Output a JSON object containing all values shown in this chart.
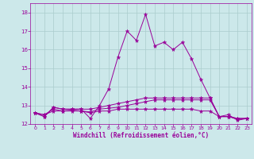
{
  "title": "",
  "xlabel": "Windchill (Refroidissement éolien,°C)",
  "ylabel": "",
  "background_color": "#cce8ea",
  "grid_color": "#aacccc",
  "line_color": "#990099",
  "xlim": [
    -0.5,
    23.5
  ],
  "ylim": [
    12,
    18.5
  ],
  "yticks": [
    12,
    13,
    14,
    15,
    16,
    17,
    18
  ],
  "xticks": [
    0,
    1,
    2,
    3,
    4,
    5,
    6,
    7,
    8,
    9,
    10,
    11,
    12,
    13,
    14,
    15,
    16,
    17,
    18,
    19,
    20,
    21,
    22,
    23
  ],
  "series": [
    [
      12.6,
      12.4,
      12.9,
      12.8,
      12.8,
      12.8,
      12.3,
      13.0,
      13.9,
      15.6,
      17.0,
      16.5,
      17.9,
      16.2,
      16.4,
      16.0,
      16.4,
      15.5,
      14.4,
      13.4,
      12.4,
      12.5,
      12.2,
      12.3
    ],
    [
      12.6,
      12.4,
      12.9,
      12.8,
      12.8,
      12.8,
      12.8,
      12.9,
      13.0,
      13.1,
      13.2,
      13.3,
      13.4,
      13.4,
      13.4,
      13.4,
      13.4,
      13.4,
      13.4,
      13.4,
      12.4,
      12.4,
      12.3,
      12.3
    ],
    [
      12.6,
      12.5,
      12.7,
      12.7,
      12.7,
      12.7,
      12.6,
      12.7,
      12.7,
      12.8,
      12.8,
      12.8,
      12.8,
      12.8,
      12.8,
      12.8,
      12.8,
      12.8,
      12.7,
      12.7,
      12.4,
      12.4,
      12.3,
      12.3
    ],
    [
      12.6,
      12.5,
      12.8,
      12.7,
      12.75,
      12.7,
      12.65,
      12.8,
      12.85,
      12.9,
      13.0,
      13.1,
      13.2,
      13.3,
      13.3,
      13.3,
      13.3,
      13.3,
      13.3,
      13.3,
      12.4,
      12.4,
      12.25,
      12.3
    ]
  ]
}
